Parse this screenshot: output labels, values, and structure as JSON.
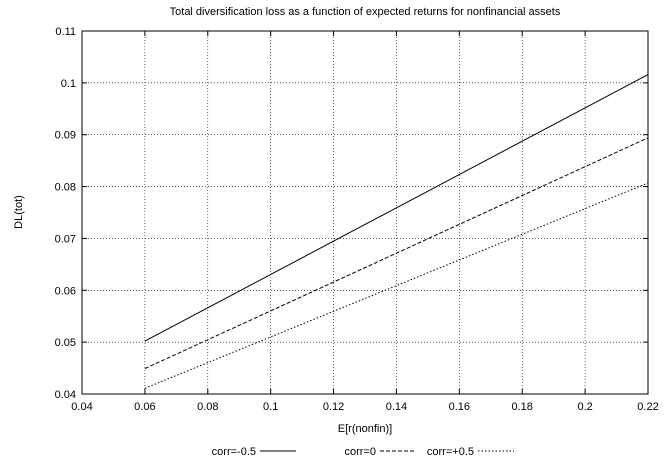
{
  "chart_data": {
    "type": "line",
    "title": "Total diversification loss as a function of expected returns for nonfinancial assets",
    "xlabel": "E[r(nonfin)]",
    "ylabel": "DL(tot)",
    "xlim": [
      0.04,
      0.22
    ],
    "ylim": [
      0.04,
      0.11
    ],
    "xticks": [
      "0.04",
      "0.06",
      "0.08",
      "0.1",
      "0.12",
      "0.14",
      "0.16",
      "0.18",
      "0.2",
      "0.22"
    ],
    "yticks": [
      "0.04",
      "0.05",
      "0.06",
      "0.07",
      "0.08",
      "0.09",
      "0.1",
      "0.11"
    ],
    "grid": true,
    "legend_position": "bottom",
    "series": [
      {
        "name": "corr=-0.5",
        "style": "solid",
        "x": [
          0.06,
          0.22
        ],
        "y": [
          0.0502,
          0.1016
        ]
      },
      {
        "name": "corr=0",
        "style": "dashed",
        "x": [
          0.06,
          0.22
        ],
        "y": [
          0.0449,
          0.0894
        ]
      },
      {
        "name": "corr=+0.5",
        "style": "dotted",
        "x": [
          0.06,
          0.22
        ],
        "y": [
          0.0411,
          0.0807
        ]
      }
    ]
  }
}
